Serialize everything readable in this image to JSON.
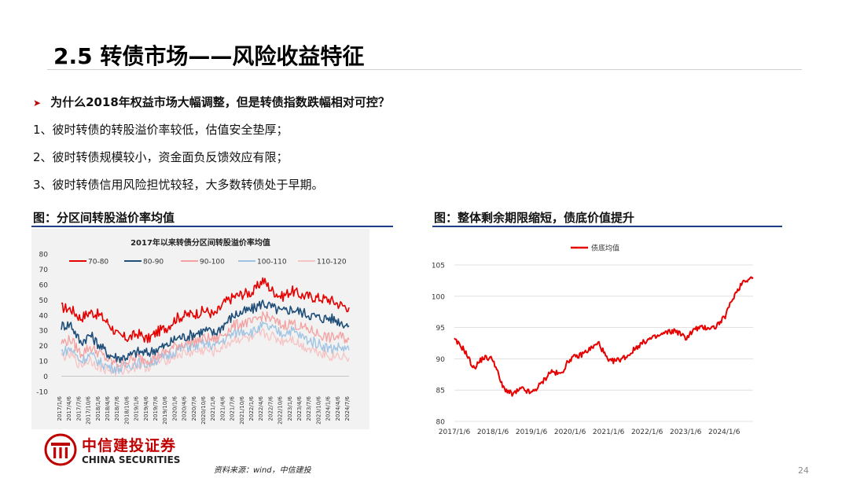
{
  "slide": {
    "title": "2.5 转债市场——风险收益特征",
    "bullet_question": "为什么2018年权益市场大幅调整，但是转债指数跌幅相对可控？",
    "points": [
      "1、彼时转债的转股溢价率较低，估值安全垫厚；",
      "2、彼时转债规模较小，资金面负反馈效应有限；",
      "3、彼时转债信用风险担忧较轻，大多数转债处于早期。"
    ],
    "left_heading": "图：分区间转股溢价率均值",
    "right_heading": "图：整体剩余期限缩短，债底价值提升",
    "source_note": "资料来源：wind，中信建投",
    "page_number": "24",
    "logo_cn": "中信建投证券",
    "logo_en": "CHINA SECURITIES"
  },
  "colors": {
    "accent_red": "#e60000",
    "navy": "#1f4e79",
    "pink": "#f4a0a0",
    "light_blue": "#9fc3e3",
    "light_pink": "#f7c4c4",
    "heading_rule": "#1f3e8a"
  },
  "chart_data": [
    {
      "type": "line",
      "title": "2017年以来转债分区间转股溢价率均值",
      "ylim": [
        -10,
        80
      ],
      "yticks": [
        "80",
        "70",
        "60",
        "50",
        "40",
        "30",
        "20",
        "10",
        "0",
        "-10"
      ],
      "grid": false,
      "legend_position": "top",
      "x": [
        "2017/1/6",
        "2017/4/6",
        "2017/7/6",
        "2017/10/6",
        "2018/1/6",
        "2018/4/6",
        "2018/7/6",
        "2018/10/6",
        "2019/1/6",
        "2019/4/6",
        "2019/7/6",
        "2019/10/6",
        "2020/1/6",
        "2020/4/6",
        "2020/7/6",
        "2020/10/6",
        "2021/1/6",
        "2021/4/6",
        "2021/7/6",
        "2021/10/6",
        "2022/1/6",
        "2022/4/6",
        "2022/7/6",
        "2022/10/6",
        "2023/1/6",
        "2023/4/6",
        "2023/7/6",
        "2023/10/6",
        "2024/1/6",
        "2024/4/6",
        "2024/7/6"
      ],
      "series": [
        {
          "name": "70-80",
          "color": "#e60000",
          "values": [
            45,
            44,
            38,
            42,
            40,
            34,
            26,
            25,
            28,
            24,
            29,
            32,
            38,
            40,
            41,
            43,
            40,
            48,
            52,
            54,
            55,
            63,
            56,
            52,
            56,
            53,
            52,
            51,
            50,
            47,
            45
          ]
        },
        {
          "name": "80-90",
          "color": "#1f4e79",
          "values": [
            33,
            34,
            22,
            27,
            20,
            14,
            12,
            13,
            16,
            15,
            18,
            20,
            25,
            26,
            28,
            30,
            28,
            34,
            40,
            42,
            44,
            48,
            45,
            42,
            44,
            42,
            40,
            38,
            38,
            36,
            33
          ]
        },
        {
          "name": "90-100",
          "color": "#f4a0a0",
          "values": [
            22,
            24,
            15,
            19,
            15,
            10,
            8,
            10,
            12,
            11,
            13,
            16,
            20,
            22,
            23,
            25,
            24,
            28,
            33,
            35,
            35,
            40,
            37,
            33,
            35,
            32,
            30,
            27,
            25,
            26,
            24
          ]
        },
        {
          "name": "100-110",
          "color": "#9fc3e3",
          "values": [
            16,
            18,
            10,
            14,
            9,
            6,
            5,
            7,
            9,
            8,
            11,
            13,
            17,
            19,
            20,
            21,
            20,
            24,
            28,
            30,
            29,
            33,
            31,
            28,
            30,
            26,
            23,
            21,
            18,
            19,
            17
          ]
        },
        {
          "name": "110-120",
          "color": "#f7c4c4",
          "values": [
            13,
            14,
            7,
            11,
            6,
            4,
            3,
            5,
            7,
            6,
            9,
            11,
            14,
            15,
            16,
            17,
            16,
            20,
            24,
            25,
            24,
            28,
            26,
            23,
            25,
            20,
            18,
            16,
            13,
            14,
            12
          ]
        }
      ]
    },
    {
      "type": "line",
      "ylim": [
        80,
        105
      ],
      "yticks": [
        "105",
        "100",
        "95",
        "90",
        "85",
        "80"
      ],
      "xticks": [
        "2017/1/6",
        "2018/1/6",
        "2019/1/6",
        "2020/1/6",
        "2021/1/6",
        "2022/1/6",
        "2023/1/6",
        "2024/1/6"
      ],
      "grid": true,
      "legend_position": "top-right",
      "x": [
        "2017/1/6",
        "2017/4/6",
        "2017/7/6",
        "2017/10/6",
        "2018/1/6",
        "2018/4/6",
        "2018/7/6",
        "2018/10/6",
        "2019/1/6",
        "2019/4/6",
        "2019/7/6",
        "2019/10/6",
        "2020/1/6",
        "2020/4/6",
        "2020/7/6",
        "2020/10/6",
        "2021/1/6",
        "2021/4/6",
        "2021/7/6",
        "2021/10/6",
        "2022/1/6",
        "2022/4/6",
        "2022/7/6",
        "2022/10/6",
        "2023/1/6",
        "2023/4/6",
        "2023/7/6",
        "2023/10/6",
        "2024/1/6",
        "2024/4/6",
        "2024/7/6",
        "2024/10/6"
      ],
      "series": [
        {
          "name": "债底均值",
          "color": "#e60000",
          "values": [
            93,
            91.5,
            88.5,
            90.2,
            90,
            85.5,
            84.3,
            85.2,
            84.5,
            86,
            88,
            87.5,
            90,
            90.5,
            91.5,
            92.5,
            89.5,
            89.8,
            90.5,
            92,
            93,
            93.5,
            94.2,
            94.5,
            93.3,
            94.8,
            95,
            95,
            96.5,
            100,
            102.5,
            103
          ]
        }
      ]
    }
  ]
}
